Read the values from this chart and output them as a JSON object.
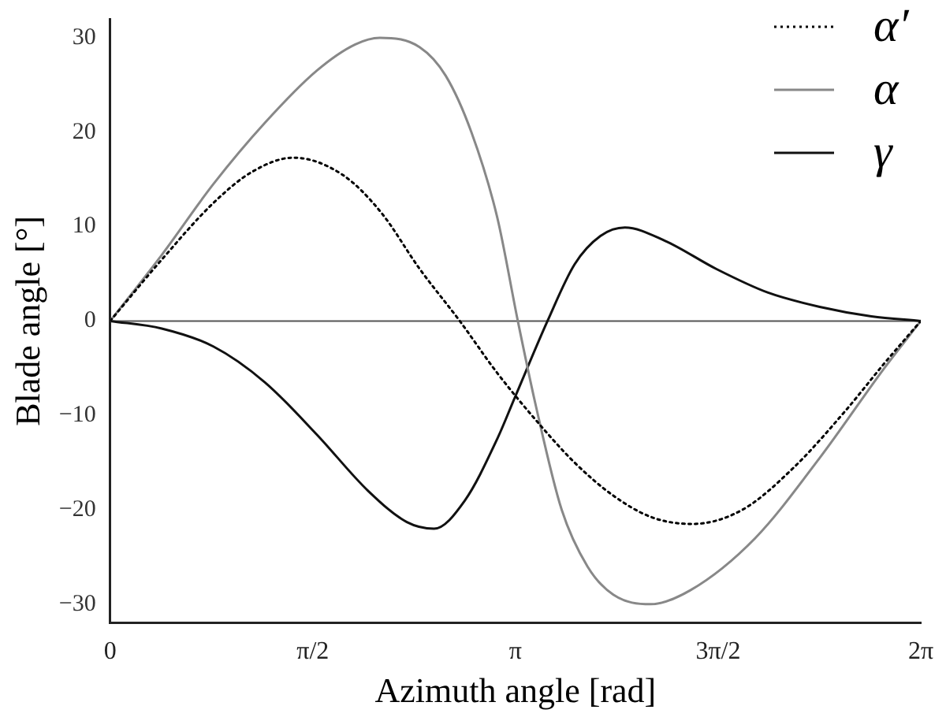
{
  "chart_data": {
    "type": "line",
    "xlabel": "Azimuth angle [rad]",
    "ylabel": "Blade angle [°]",
    "xlim": [
      0,
      6.2832
    ],
    "xticks": [
      0,
      {
        "value": 1.5708,
        "label": "π/2"
      },
      {
        "value": 3.1416,
        "label": "π"
      },
      {
        "value": 4.7124,
        "label": "3π/2"
      },
      {
        "value": 6.2832,
        "label": "2π"
      }
    ],
    "ylim": [
      -32,
      32
    ],
    "yticks": [
      -30,
      -20,
      -10,
      0,
      10,
      20,
      30
    ],
    "grid": false,
    "legend": "top right",
    "marker": "none",
    "ref_lines": [
      {
        "axis": "y",
        "value": 0,
        "color": "#555555"
      }
    ],
    "series": [
      {
        "name": "α′",
        "color": "#000000",
        "line_style": "dotted",
        "x": [
          0,
          0.4,
          0.8,
          1.1,
          1.42,
          1.8,
          2.1,
          2.4,
          2.71,
          3.0,
          3.3,
          3.6,
          3.9,
          4.2,
          4.51,
          4.9,
          5.3,
          5.7,
          6.0,
          6.2832
        ],
        "values": [
          0,
          6.5,
          12.5,
          15.8,
          17.3,
          15.5,
          11.5,
          5.5,
          0,
          -5.5,
          -10.5,
          -15,
          -18.5,
          -20.8,
          -21.5,
          -20,
          -15.5,
          -9.5,
          -4.5,
          0
        ]
      },
      {
        "name": "α",
        "color": "#888888",
        "line_style": "solid",
        "x": [
          0,
          0.4,
          0.8,
          1.2,
          1.6,
          1.9,
          2.09,
          2.4,
          2.6,
          2.8,
          3.0,
          3.16,
          3.3,
          3.5,
          3.7,
          3.9,
          4.19,
          4.5,
          5.0,
          5.5,
          6.0,
          6.2832
        ],
        "values": [
          0,
          7,
          14.5,
          21,
          26.5,
          29.3,
          30,
          29,
          26,
          20,
          11,
          0,
          -9,
          -20,
          -26,
          -29,
          -30,
          -28.5,
          -23,
          -14.5,
          -5,
          0
        ]
      },
      {
        "name": "γ",
        "color": "#111111",
        "line_style": "solid",
        "x": [
          0,
          0.4,
          0.8,
          1.2,
          1.6,
          2.0,
          2.3,
          2.51,
          2.75,
          3.0,
          3.14,
          3.39,
          3.6,
          3.8,
          3.99,
          4.3,
          4.7,
          5.1,
          5.5,
          5.9,
          6.2832
        ],
        "values": [
          0,
          -0.8,
          -2.7,
          -6.5,
          -12,
          -18,
          -21.3,
          -22,
          -19,
          -12.5,
          -8,
          0,
          6,
          9,
          9.9,
          8.5,
          5.5,
          3,
          1.5,
          0.5,
          0
        ]
      }
    ]
  }
}
